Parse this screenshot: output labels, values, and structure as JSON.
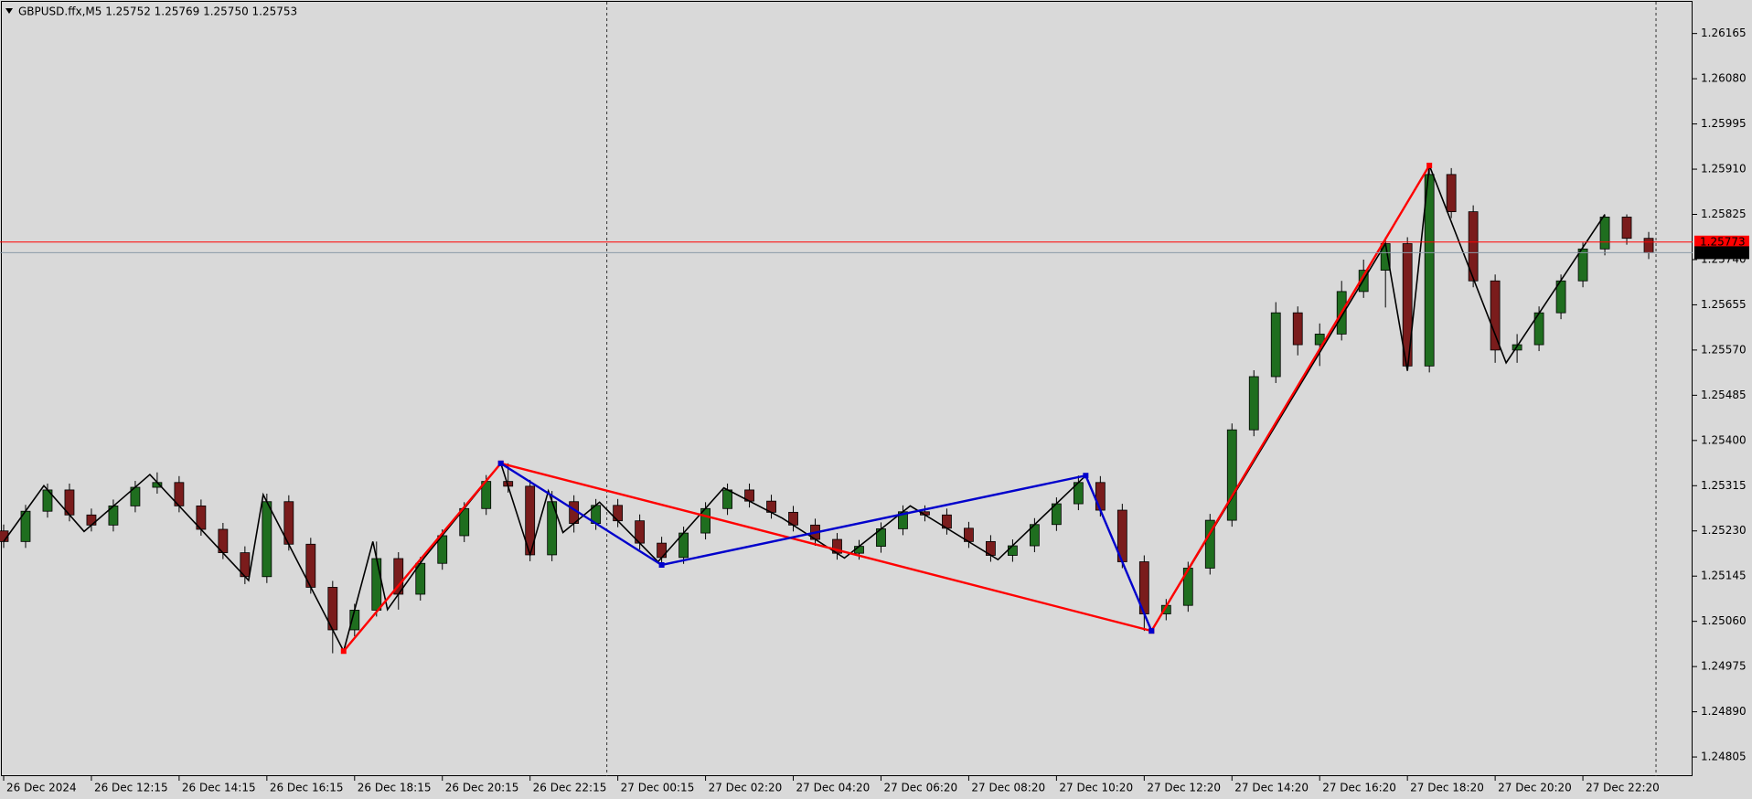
{
  "chart_data": {
    "type": "candlestick",
    "title": "GBPUSD.ffx,M5  1.25752 1.25769 1.25750 1.25753",
    "x": [
      0,
      6,
      12,
      18,
      24,
      30,
      36,
      42,
      48,
      54,
      60,
      66,
      72,
      78,
      84,
      90,
      96,
      102,
      108,
      114,
      120,
      126,
      132,
      138,
      144,
      150,
      156,
      162,
      168,
      174,
      180,
      186,
      192,
      198,
      204,
      210,
      216,
      222,
      228,
      234,
      240,
      246,
      252,
      258,
      264,
      270,
      276,
      282,
      288,
      294,
      300,
      306,
      312,
      318,
      324,
      330,
      336,
      342,
      348,
      354,
      360,
      366,
      372,
      378,
      384,
      390,
      396,
      402,
      408,
      414,
      420,
      426,
      432,
      438,
      444,
      450
    ],
    "open": [
      1.2523,
      1.2521,
      1.25267,
      1.25307,
      1.2526,
      1.25241,
      1.25277,
      1.25312,
      1.25321,
      1.25277,
      1.25233,
      1.25189,
      1.25144,
      1.25285,
      1.25205,
      1.25124,
      1.25044,
      1.25081,
      1.25178,
      1.25111,
      1.25169,
      1.25221,
      1.25272,
      1.25323,
      1.25314,
      1.25185,
      1.25285,
      1.25244,
      1.25278,
      1.25249,
      1.25207,
      1.2518,
      1.25226,
      1.25272,
      1.25307,
      1.25286,
      1.25265,
      1.25241,
      1.25214,
      1.25188,
      1.25201,
      1.25234,
      1.25266,
      1.2526,
      1.25235,
      1.2521,
      1.25184,
      1.25202,
      1.25242,
      1.25281,
      1.25321,
      1.25269,
      1.25172,
      1.25074,
      1.2509,
      1.2516,
      1.2525,
      1.2542,
      1.2552,
      1.2564,
      1.2558,
      1.256,
      1.2568,
      1.2572,
      1.2577,
      1.2554,
      1.259,
      1.2583,
      1.257,
      1.2557,
      1.2558,
      1.2564,
      1.257,
      1.2576,
      1.2582,
      1.2578
    ],
    "high": [
      1.25242,
      1.25279,
      1.25319,
      1.25319,
      1.25272,
      1.25289,
      1.25324,
      1.2534,
      1.25333,
      1.25289,
      1.25245,
      1.25201,
      1.253,
      1.25297,
      1.25217,
      1.25136,
      1.25093,
      1.2521,
      1.2519,
      1.25181,
      1.25233,
      1.25284,
      1.25335,
      1.25357,
      1.25326,
      1.25305,
      1.25297,
      1.2529,
      1.2529,
      1.25261,
      1.25219,
      1.25238,
      1.25284,
      1.25319,
      1.25319,
      1.25298,
      1.25277,
      1.25253,
      1.25226,
      1.25213,
      1.25246,
      1.25278,
      1.25278,
      1.25272,
      1.25247,
      1.25222,
      1.25214,
      1.25254,
      1.25293,
      1.25334,
      1.25333,
      1.25281,
      1.25184,
      1.25102,
      1.25172,
      1.25262,
      1.25432,
      1.25532,
      1.2566,
      1.25652,
      1.2562,
      1.257,
      1.2574,
      1.25782,
      1.25782,
      1.25917,
      1.25912,
      1.25842,
      1.25712,
      1.256,
      1.25652,
      1.25712,
      1.25772,
      1.25825,
      1.25825,
      1.25792
    ],
    "low": [
      1.25198,
      1.25198,
      1.25255,
      1.25248,
      1.25229,
      1.25229,
      1.25265,
      1.253,
      1.25265,
      1.25221,
      1.25177,
      1.2513,
      1.25132,
      1.25193,
      1.25112,
      1.25,
      1.25032,
      1.25069,
      1.25082,
      1.25099,
      1.25157,
      1.25209,
      1.2526,
      1.25302,
      1.25173,
      1.25173,
      1.25227,
      1.25232,
      1.25237,
      1.25195,
      1.25168,
      1.25168,
      1.25214,
      1.2526,
      1.25274,
      1.25253,
      1.25229,
      1.25202,
      1.25176,
      1.25176,
      1.25189,
      1.25222,
      1.25248,
      1.25223,
      1.25198,
      1.25172,
      1.25172,
      1.2519,
      1.2523,
      1.25269,
      1.25257,
      1.2516,
      1.25042,
      1.25062,
      1.25078,
      1.25148,
      1.25238,
      1.25408,
      1.25508,
      1.2556,
      1.2554,
      1.25588,
      1.25668,
      1.2565,
      1.25531,
      1.25528,
      1.25818,
      1.25688,
      1.25546,
      1.25546,
      1.25568,
      1.25628,
      1.25688,
      1.25748,
      1.25768,
      1.25741
    ],
    "close": [
      1.2521,
      1.25267,
      1.25307,
      1.2526,
      1.25241,
      1.25277,
      1.25312,
      1.25321,
      1.25277,
      1.25233,
      1.25189,
      1.25144,
      1.25285,
      1.25205,
      1.25124,
      1.25044,
      1.25081,
      1.25178,
      1.25111,
      1.25169,
      1.25221,
      1.25272,
      1.25323,
      1.25314,
      1.25185,
      1.25285,
      1.25244,
      1.25278,
      1.25249,
      1.25207,
      1.2518,
      1.25226,
      1.25272,
      1.25307,
      1.25286,
      1.25265,
      1.25241,
      1.25214,
      1.25188,
      1.25201,
      1.25234,
      1.25266,
      1.2526,
      1.25235,
      1.2521,
      1.25184,
      1.25202,
      1.25242,
      1.25281,
      1.25321,
      1.25269,
      1.25172,
      1.25074,
      1.2509,
      1.2516,
      1.2525,
      1.2542,
      1.2552,
      1.2564,
      1.2558,
      1.256,
      1.2568,
      1.2572,
      1.2577,
      1.2554,
      1.259,
      1.2583,
      1.257,
      1.2557,
      1.2558,
      1.2564,
      1.257,
      1.2576,
      1.2582,
      1.2578,
      1.25753
    ],
    "up_color": "#1f6e1f",
    "down_color": "#7a1c1c",
    "series": [
      {
        "color": "#000000",
        "x": [
          0,
          11,
          22,
          40,
          67,
          71,
          93,
          101,
          105,
          115,
          136,
          144,
          149,
          153,
          163,
          179,
          197,
          213,
          230,
          248,
          272,
          296,
          314,
          378,
          384,
          390,
          411,
          438
        ],
        "values": [
          1.2521,
          1.25315,
          1.25229,
          1.25336,
          1.25137,
          1.25298,
          1.25004,
          1.2521,
          1.25082,
          1.25179,
          1.25357,
          1.25185,
          1.25305,
          1.25227,
          1.25284,
          1.25172,
          1.25311,
          1.25254,
          1.25179,
          1.25277,
          1.25176,
          1.25334,
          1.25042,
          1.2577,
          1.25531,
          1.25917,
          1.25546,
          1.25825
        ]
      },
      {
        "color": "#ff0000",
        "x": [
          93,
          136,
          314,
          390
        ],
        "values": [
          1.25004,
          1.25357,
          1.25042,
          1.25917
        ]
      },
      {
        "color": "#0000cc",
        "x": [
          136,
          180,
          296,
          314
        ],
        "values": [
          1.25357,
          1.25166,
          1.25334,
          1.25042
        ]
      }
    ],
    "hlines": [
      {
        "value": 1.25773,
        "color": "#ff0000",
        "label_color": "#ffffff"
      },
      {
        "value": 1.25753,
        "color": "#8a9aa8",
        "label_color": "#ffffff",
        "label_bg": "#000000"
      }
    ],
    "vlines": [
      165,
      452
    ],
    "xlim": [
      -1,
      462
    ],
    "ylim": [
      1.24769,
      1.26228
    ],
    "yticks": [
      1.24805,
      {
        "value": 1.2489,
        "label": "1.24890"
      },
      1.24975,
      {
        "value": 1.2506,
        "label": "1.25060"
      },
      1.25145,
      {
        "value": 1.2523,
        "label": "1.25230"
      },
      1.25315,
      {
        "value": 1.254,
        "label": "1.25400"
      },
      1.25485,
      {
        "value": 1.2557,
        "label": "1.25570"
      },
      1.25655,
      {
        "value": 1.2574,
        "label": "1.25740"
      },
      1.25825,
      {
        "value": 1.2591,
        "label": "1.25910"
      },
      1.25995,
      {
        "value": 1.2608,
        "label": "1.26080"
      },
      1.26165
    ],
    "xticks": [
      {
        "value": 0,
        "label": "26 Dec 2024"
      },
      {
        "value": 24,
        "label": "26 Dec 12:15"
      },
      {
        "value": 48,
        "label": "26 Dec 14:15"
      },
      {
        "value": 72,
        "label": "26 Dec 16:15"
      },
      {
        "value": 96,
        "label": "26 Dec 18:15"
      },
      {
        "value": 120,
        "label": "26 Dec 20:15"
      },
      {
        "value": 144,
        "label": "26 Dec 22:15"
      },
      {
        "value": 168,
        "label": "27 Dec 00:15"
      },
      {
        "value": 192,
        "label": "27 Dec 02:20"
      },
      {
        "value": 216,
        "label": "27 Dec 04:20"
      },
      {
        "value": 240,
        "label": "27 Dec 06:20"
      },
      {
        "value": 264,
        "label": "27 Dec 08:20"
      },
      {
        "value": 288,
        "label": "27 Dec 10:20"
      },
      {
        "value": 312,
        "label": "27 Dec 12:20"
      },
      {
        "value": 336,
        "label": "27 Dec 14:20"
      },
      {
        "value": 360,
        "label": "27 Dec 16:20"
      },
      {
        "value": 384,
        "label": "27 Dec 18:20"
      },
      {
        "value": 408,
        "label": "27 Dec 20:20"
      },
      {
        "value": 432,
        "label": "27 Dec 22:20"
      }
    ]
  }
}
